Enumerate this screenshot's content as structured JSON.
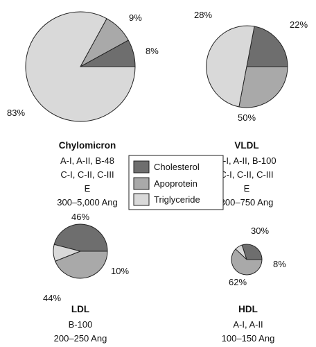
{
  "colors": {
    "cholesterol": "#6e6e6e",
    "apoprotein": "#a9a9a9",
    "triglyceride": "#d9d9d9",
    "outline": "#222222"
  },
  "legend": {
    "items": [
      {
        "key": "cholesterol",
        "label": "Cholesterol"
      },
      {
        "key": "apoprotein",
        "label": "Apoprotein"
      },
      {
        "key": "triglyceride",
        "label": "Triglyceride"
      }
    ]
  },
  "chart_data": [
    {
      "type": "pie",
      "title": "Chylomicron",
      "subtitle": [
        "A-I, A-II, B-48",
        "C-I, C-II, C-III",
        "E",
        "300–5,000 Ang"
      ],
      "slices": [
        {
          "key": "cholesterol",
          "value": 8,
          "label": "8%"
        },
        {
          "key": "apoprotein",
          "value": 9,
          "label": "9%"
        },
        {
          "key": "triglyceride",
          "value": 83,
          "label": "83%"
        }
      ]
    },
    {
      "type": "pie",
      "title": "VLDL",
      "subtitle": [
        "A-I, A-II, B-100",
        "C-I, C-II, C-III",
        "E",
        "300–750 Ang"
      ],
      "slices": [
        {
          "key": "cholesterol",
          "value": 22,
          "label": "22%"
        },
        {
          "key": "triglyceride",
          "value": 50,
          "label": "50%"
        },
        {
          "key": "apoprotein",
          "value": 28,
          "label": "28%"
        }
      ]
    },
    {
      "type": "pie",
      "title": "LDL",
      "subtitle": [
        "B-100",
        "200–250 Ang"
      ],
      "slices": [
        {
          "key": "cholesterol",
          "value": 46,
          "label": "46%"
        },
        {
          "key": "triglyceride",
          "value": 10,
          "label": "10%"
        },
        {
          "key": "apoprotein",
          "value": 44,
          "label": "44%"
        }
      ]
    },
    {
      "type": "pie",
      "title": "HDL",
      "subtitle": [
        "A-I, A-II",
        "100–150 Ang"
      ],
      "slices": [
        {
          "key": "cholesterol",
          "value": 30,
          "label": "30%"
        },
        {
          "key": "triglyceride",
          "value": 8,
          "label": "8%"
        },
        {
          "key": "apoprotein",
          "value": 62,
          "label": "62%"
        }
      ]
    }
  ]
}
